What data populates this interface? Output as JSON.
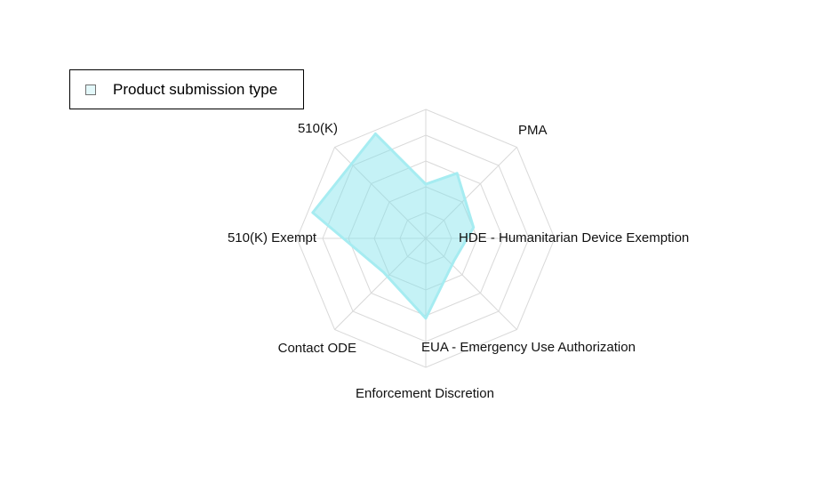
{
  "chart_data": {
    "type": "radar",
    "categories": [
      "PMA",
      "HDE - Humanitarian Device Exemption",
      "EUA - Emergency Use Authorization",
      "Enforcement Discretion",
      "Contact ODE",
      "510(K) Exempt",
      "510(K)"
    ],
    "series": [
      {
        "name": "Product submission type",
        "values": [
          0.56,
          0.38,
          0.28,
          0.62,
          0.42,
          0.9,
          0.9
        ]
      }
    ],
    "range": [
      0,
      1
    ],
    "grid": true,
    "gridlevels": 5,
    "legend": "top-left",
    "title": "",
    "colors": {
      "fill": "#7fe3ea",
      "stroke": "#a6ecf1",
      "grid": "#d9d9d9"
    }
  }
}
